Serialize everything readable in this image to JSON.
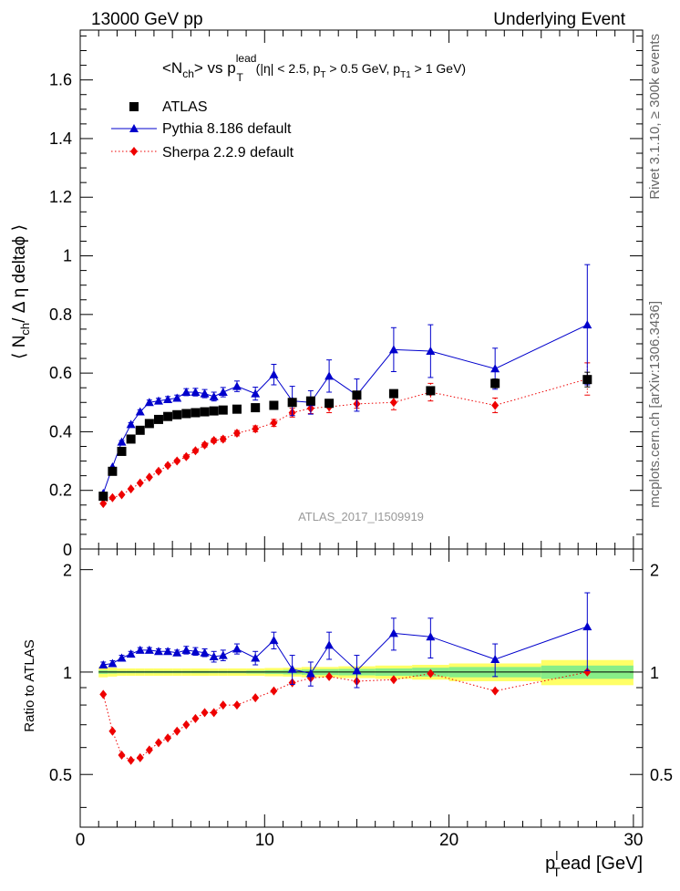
{
  "header": {
    "left": "13000 GeV pp",
    "right": "Underlying Event"
  },
  "side_labels": {
    "rivet": "Rivet 3.1.10, ≥ 300k events",
    "mcplots": "mcplots.cern.ch [arXiv:1306.3436]"
  },
  "chart_data": {
    "type": "scatter",
    "title": {
      "pre": "<N",
      "ch_sub": "ch",
      "mid": "> vs p",
      "lead_sup": "lead",
      "t_sub": "T",
      "cut1": " (|η| < 2.5, p",
      "cut1_sub": "T",
      "cut2": " > 0.5 GeV, p",
      "cut2_sub": "T1",
      "cut3": " > 1 GeV)"
    },
    "watermark": "ATLAS_2017_I1509919",
    "ylabel": {
      "pre": "⟨ N",
      "sub": "ch",
      "post": "/ Δ η deltaϕ ⟩"
    },
    "ratio_ylabel": "Ratio to ATLAS",
    "xlabel": {
      "p": "p",
      "sup": "l",
      "sub": "T",
      "post": "ead [GeV]"
    },
    "xlim": [
      0,
      30.5
    ],
    "ylim": [
      0,
      1.77
    ],
    "ratio_ylim": [
      0.35,
      2.3
    ],
    "xticks": [
      0,
      10,
      20,
      30
    ],
    "yticks": [
      0.2,
      0.4,
      0.6,
      0.8,
      1,
      1.2,
      1.4,
      1.6
    ],
    "yticks_zero_label": "0",
    "ratio_yticks": [
      0.5,
      1,
      2
    ],
    "ratio_ytick_labels": [
      "0.5",
      "1",
      "2"
    ],
    "legend_position": "top-left",
    "series": [
      {
        "name": "ATLAS",
        "color": "#000000",
        "marker": "square",
        "x": [
          1.25,
          1.75,
          2.25,
          2.75,
          3.25,
          3.75,
          4.25,
          4.75,
          5.25,
          5.75,
          6.25,
          6.75,
          7.25,
          7.75,
          8.5,
          9.5,
          10.5,
          11.5,
          12.5,
          13.5,
          15,
          17,
          19,
          22.5,
          27.5
        ],
        "y": [
          0.18,
          0.265,
          0.333,
          0.375,
          0.405,
          0.428,
          0.442,
          0.452,
          0.458,
          0.462,
          0.465,
          0.468,
          0.471,
          0.474,
          0.477,
          0.482,
          0.49,
          0.5,
          0.505,
          0.497,
          0.525,
          0.53,
          0.54,
          0.565,
          0.578
        ],
        "yerr": [
          0.003,
          0.003,
          0.003,
          0.003,
          0.003,
          0.003,
          0.003,
          0.003,
          0.003,
          0.003,
          0.003,
          0.003,
          0.003,
          0.003,
          0.003,
          0.004,
          0.005,
          0.006,
          0.006,
          0.006,
          0.008,
          0.01,
          0.012,
          0.015,
          0.025
        ]
      },
      {
        "name": "Pythia 8.186 default",
        "color": "#0000cc",
        "marker": "triangle",
        "line": "solid",
        "x": [
          1.25,
          1.75,
          2.25,
          2.75,
          3.25,
          3.75,
          4.25,
          4.75,
          5.25,
          5.75,
          6.25,
          6.75,
          7.25,
          7.75,
          8.5,
          9.5,
          10.5,
          11.5,
          12.5,
          13.5,
          15,
          17,
          19,
          22.5,
          27.5
        ],
        "y": [
          0.19,
          0.28,
          0.365,
          0.425,
          0.468,
          0.5,
          0.505,
          0.51,
          0.515,
          0.535,
          0.535,
          0.53,
          0.52,
          0.535,
          0.555,
          0.53,
          0.595,
          0.505,
          0.5,
          0.59,
          0.525,
          0.68,
          0.675,
          0.615,
          0.765
        ],
        "yerr": [
          0.003,
          0.004,
          0.005,
          0.006,
          0.007,
          0.008,
          0.009,
          0.01,
          0.01,
          0.012,
          0.013,
          0.014,
          0.015,
          0.016,
          0.018,
          0.022,
          0.035,
          0.05,
          0.04,
          0.055,
          0.055,
          0.075,
          0.09,
          0.07,
          0.205
        ]
      },
      {
        "name": "Sherpa 2.2.9 default",
        "color": "#ee0000",
        "marker": "diamond",
        "line": "dotted",
        "x": [
          1.25,
          1.75,
          2.25,
          2.75,
          3.25,
          3.75,
          4.25,
          4.75,
          5.25,
          5.75,
          6.25,
          6.75,
          7.25,
          7.75,
          8.5,
          9.5,
          10.5,
          11.5,
          12.5,
          13.5,
          15,
          17,
          19,
          22.5,
          27.5
        ],
        "y": [
          0.155,
          0.175,
          0.185,
          0.205,
          0.225,
          0.245,
          0.265,
          0.285,
          0.3,
          0.315,
          0.335,
          0.355,
          0.37,
          0.375,
          0.395,
          0.41,
          0.43,
          0.465,
          0.48,
          0.485,
          0.495,
          0.5,
          0.535,
          0.49,
          0.58
        ],
        "yerr": [
          0.003,
          0.003,
          0.003,
          0.004,
          0.004,
          0.004,
          0.005,
          0.005,
          0.005,
          0.006,
          0.006,
          0.007,
          0.007,
          0.008,
          0.009,
          0.01,
          0.012,
          0.015,
          0.018,
          0.02,
          0.015,
          0.025,
          0.03,
          0.025,
          0.055
        ]
      }
    ],
    "ratio": {
      "band_outer_color": "#ffff66",
      "band_inner_color": "#88ee88",
      "band_edges": [
        1,
        1.5,
        2,
        2.5,
        3,
        3.5,
        4,
        4.5,
        5,
        5.5,
        6,
        6.5,
        7,
        7.5,
        8,
        9,
        10,
        11,
        12,
        13,
        14,
        16,
        18,
        20,
        25,
        30
      ],
      "band_outer": [
        0.035,
        0.03,
        0.025,
        0.025,
        0.025,
        0.025,
        0.025,
        0.025,
        0.025,
        0.025,
        0.025,
        0.025,
        0.025,
        0.025,
        0.025,
        0.025,
        0.028,
        0.03,
        0.035,
        0.035,
        0.04,
        0.045,
        0.05,
        0.06,
        0.085
      ],
      "band_inner": [
        0.012,
        0.01,
        0.008,
        0.008,
        0.008,
        0.008,
        0.008,
        0.008,
        0.008,
        0.008,
        0.008,
        0.008,
        0.008,
        0.008,
        0.008,
        0.01,
        0.012,
        0.015,
        0.018,
        0.02,
        0.022,
        0.025,
        0.03,
        0.035,
        0.045
      ],
      "series": [
        {
          "name": "Pythia 8.186 default",
          "color": "#0000cc",
          "marker": "triangle",
          "line": "solid",
          "x": [
            1.25,
            1.75,
            2.25,
            2.75,
            3.25,
            3.75,
            4.25,
            4.75,
            5.25,
            5.75,
            6.25,
            6.75,
            7.25,
            7.75,
            8.5,
            9.5,
            10.5,
            11.5,
            12.5,
            13.5,
            15,
            17,
            19,
            22.5,
            27.5
          ],
          "y": [
            1.05,
            1.06,
            1.1,
            1.13,
            1.16,
            1.16,
            1.15,
            1.15,
            1.14,
            1.16,
            1.15,
            1.14,
            1.11,
            1.12,
            1.17,
            1.1,
            1.24,
            1.02,
            0.99,
            1.2,
            1.01,
            1.3,
            1.27,
            1.09,
            1.36
          ],
          "yerr": [
            0.02,
            0.02,
            0.02,
            0.02,
            0.02,
            0.02,
            0.02,
            0.02,
            0.02,
            0.03,
            0.03,
            0.03,
            0.04,
            0.04,
            0.04,
            0.05,
            0.07,
            0.1,
            0.08,
            0.11,
            0.11,
            0.14,
            0.17,
            0.12,
            0.35
          ]
        },
        {
          "name": "Sherpa 2.2.9 default",
          "color": "#ee0000",
          "marker": "diamond",
          "line": "dotted",
          "x": [
            1.25,
            1.75,
            2.25,
            2.75,
            3.25,
            3.75,
            4.25,
            4.75,
            5.25,
            5.75,
            6.25,
            6.75,
            7.25,
            7.75,
            8.5,
            9.5,
            10.5,
            11.5,
            12.5,
            13.5,
            15,
            17,
            19,
            22.5,
            27.5
          ],
          "y": [
            0.86,
            0.67,
            0.57,
            0.55,
            0.56,
            0.59,
            0.62,
            0.64,
            0.67,
            0.7,
            0.73,
            0.76,
            0.76,
            0.8,
            0.8,
            0.84,
            0.88,
            0.93,
            0.96,
            0.97,
            0.94,
            0.95,
            0.99,
            0.88,
            1.0
          ]
        }
      ]
    }
  }
}
